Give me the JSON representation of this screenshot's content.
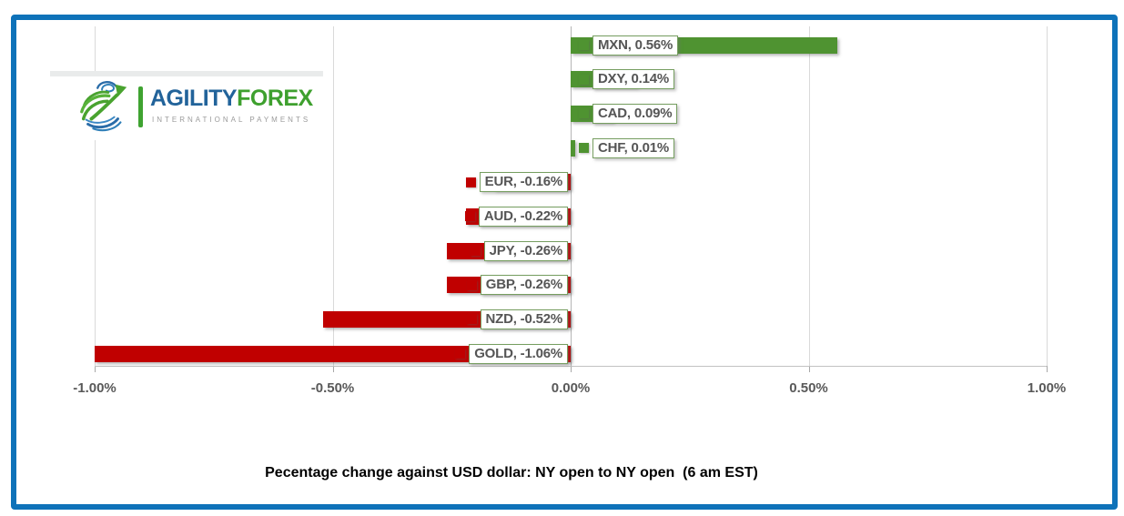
{
  "logo": {
    "brand_primary": "AGILITY",
    "brand_secondary": "FOREX",
    "tagline": "INTERNATIONAL PAYMENTS"
  },
  "chart_data": {
    "type": "bar",
    "orientation": "horizontal",
    "title": "Pecentage change against USD dollar: NY open to NY open  (6 am EST)",
    "categories": [
      "MXN",
      "DXY",
      "CAD",
      "CHF",
      "EUR",
      "AUD",
      "JPY",
      "GBP",
      "NZD",
      "GOLD"
    ],
    "values": [
      0.56,
      0.14,
      0.09,
      0.01,
      -0.16,
      -0.22,
      -0.26,
      -0.26,
      -0.52,
      -1.06
    ],
    "data_labels": [
      "MXN, 0.56%",
      "DXY, 0.14%",
      "CAD, 0.09%",
      "CHF, 0.01%",
      "EUR, -0.16%",
      "AUD, -0.22%",
      "JPY, -0.26%",
      "GBP, -0.26%",
      "NZD, -0.52%",
      "GOLD, -1.06%"
    ],
    "x_ticks": [
      {
        "label": "-1.00%",
        "value": -1
      },
      {
        "label": "-0.50%",
        "value": -0.5
      },
      {
        "label": "0.00%",
        "value": 0
      },
      {
        "label": "0.50%",
        "value": 0.5
      },
      {
        "label": "1.00%",
        "value": 1
      }
    ],
    "xlim": [
      -1,
      1
    ],
    "grid": true,
    "legend_position": "none",
    "positive_color": "#4f9331",
    "negative_color": "#c00000",
    "label_border_color": "#769e60",
    "frame_color": "#0e72b9"
  }
}
